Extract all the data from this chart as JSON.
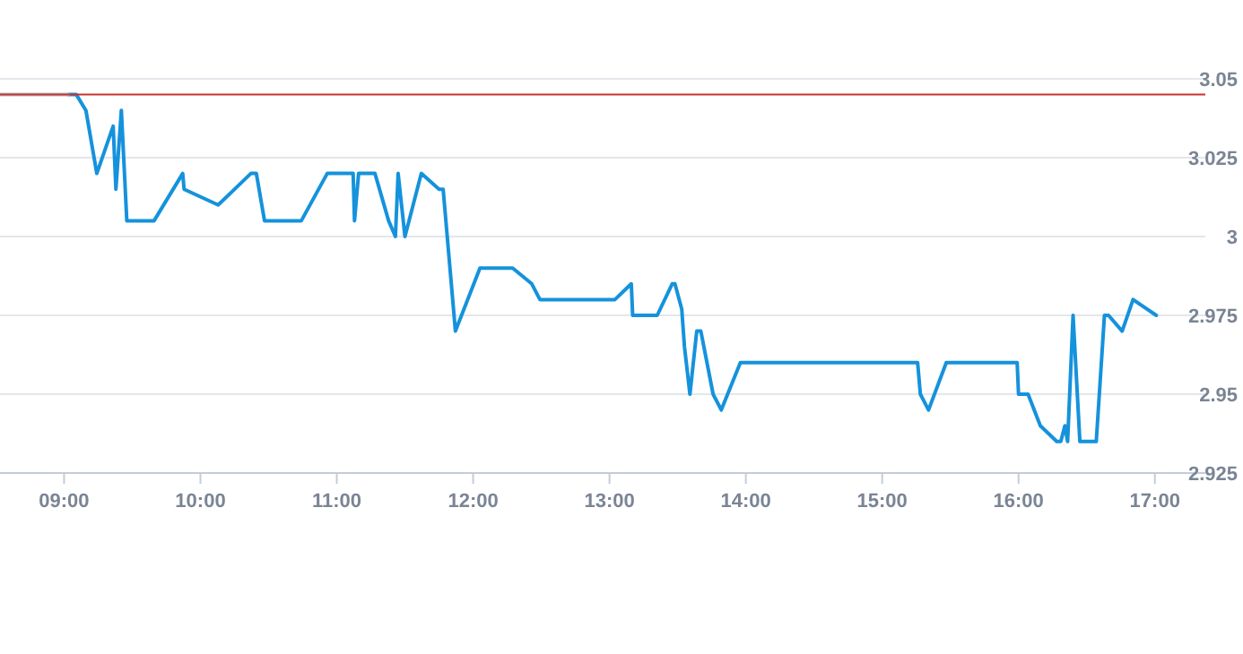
{
  "chart_data": {
    "type": "line",
    "x": [
      9.03,
      9.09,
      9.16,
      9.24,
      9.36,
      9.38,
      9.42,
      9.46,
      9.66,
      9.87,
      9.88,
      10.13,
      10.37,
      10.41,
      10.47,
      10.74,
      10.93,
      11.12,
      11.13,
      11.16,
      11.28,
      11.38,
      11.43,
      11.45,
      11.5,
      11.62,
      11.75,
      11.78,
      11.87,
      12.05,
      12.29,
      12.43,
      12.49,
      13.04,
      13.16,
      13.17,
      13.35,
      13.46,
      13.48,
      13.53,
      13.55,
      13.59,
      13.64,
      13.67,
      13.76,
      13.82,
      13.96,
      15.26,
      15.28,
      15.34,
      15.47,
      15.99,
      16.0,
      16.07,
      16.16,
      16.28,
      16.31,
      16.34,
      16.36,
      16.4,
      16.45,
      16.57,
      16.63,
      16.66,
      16.76,
      16.84,
      17.01
    ],
    "series": [
      {
        "color": "#1592dc",
        "values": [
          3.045,
          3.045,
          3.04,
          3.02,
          3.035,
          3.015,
          3.04,
          3.005,
          3.005,
          3.02,
          3.015,
          3.01,
          3.02,
          3.02,
          3.005,
          3.005,
          3.02,
          3.02,
          3.005,
          3.02,
          3.02,
          3.005,
          3.0,
          3.02,
          3.0,
          3.02,
          3.015,
          3.015,
          2.97,
          2.99,
          2.99,
          2.985,
          2.98,
          2.98,
          2.985,
          2.975,
          2.975,
          2.985,
          2.985,
          2.977,
          2.965,
          2.95,
          2.97,
          2.97,
          2.95,
          2.945,
          2.96,
          2.96,
          2.95,
          2.945,
          2.96,
          2.96,
          2.95,
          2.95,
          2.94,
          2.935,
          2.935,
          2.94,
          2.935,
          2.975,
          2.935,
          2.935,
          2.975,
          2.975,
          2.97,
          2.98,
          2.975
        ]
      },
      {
        "color": "#b4c0cc",
        "x": [
          8.53,
          9.03
        ],
        "values": [
          3.045,
          3.045
        ]
      }
    ],
    "xlim": [
      8.53,
      17.37
    ],
    "ylim": [
      2.925,
      3.05
    ],
    "xticks": [
      {
        "value": 9,
        "label": "09:00"
      },
      {
        "value": 10,
        "label": "10:00"
      },
      {
        "value": 11,
        "label": "11:00"
      },
      {
        "value": 12,
        "label": "12:00"
      },
      {
        "value": 13,
        "label": "13:00"
      },
      {
        "value": 14,
        "label": "14:00"
      },
      {
        "value": 15,
        "label": "15:00"
      },
      {
        "value": 16,
        "label": "16:00"
      },
      {
        "value": 17,
        "label": "17:00"
      }
    ],
    "yticks": [
      2.925,
      2.95,
      2.975,
      3,
      3.025,
      3.05
    ],
    "grid": "y",
    "marker": "none",
    "line_style": "solid",
    "ref_lines": [
      {
        "axis": "y",
        "value": 3.045,
        "color": "#c8322c"
      }
    ]
  }
}
